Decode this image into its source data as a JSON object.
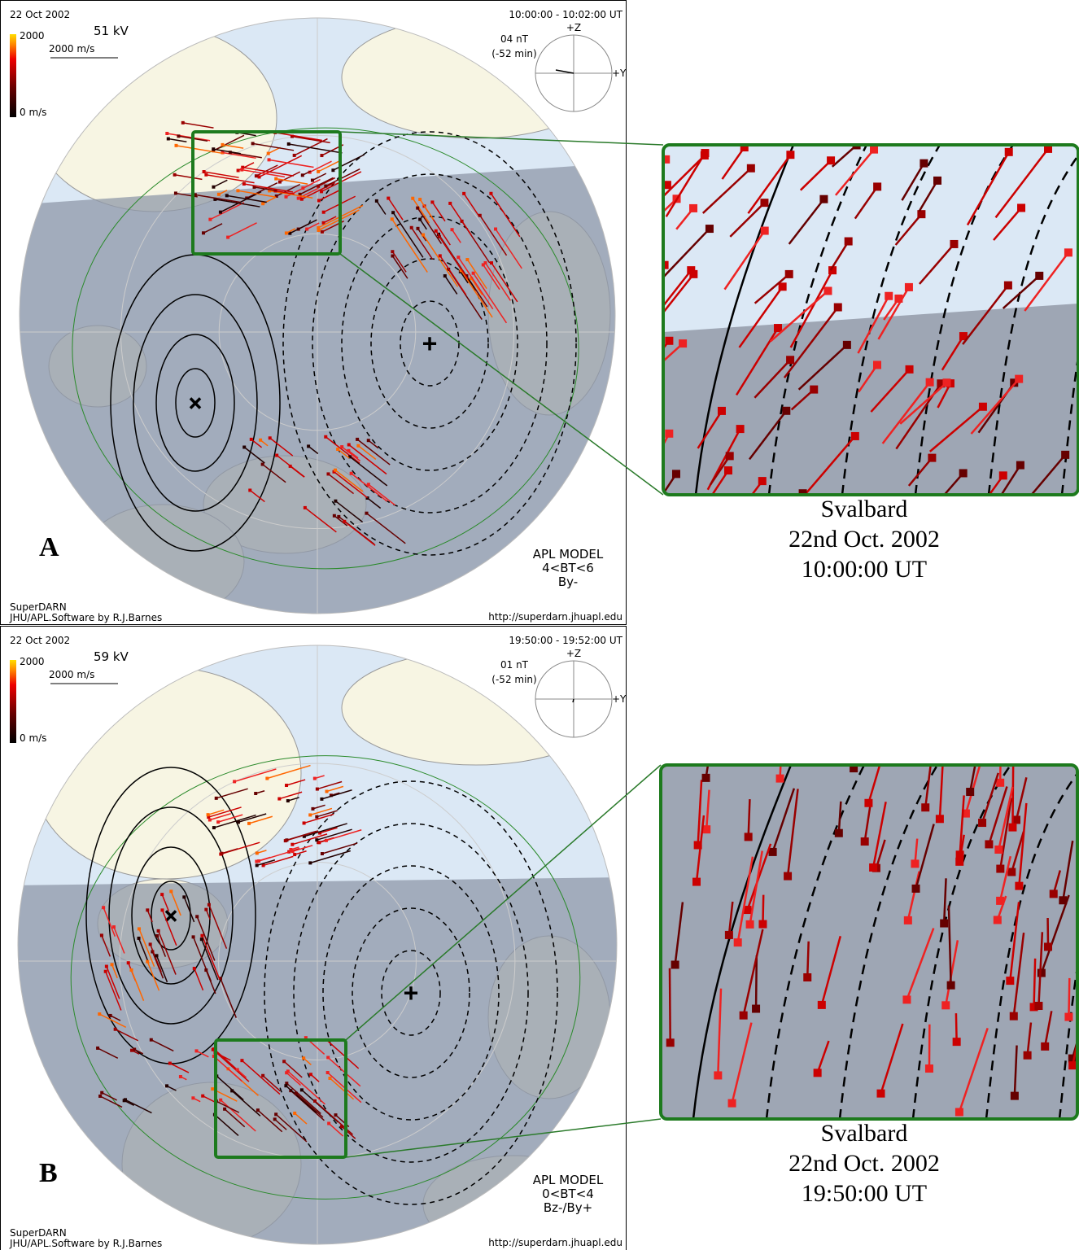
{
  "panels": [
    {
      "date": "22 Oct 2002",
      "potential": "51 kV",
      "scale_max": "2000",
      "scale_vector": "2000 m/s",
      "scale_min": "0 m/s",
      "time": "10:00:00 - 10:02:00 UT",
      "imf": "04 nT",
      "delay": "(-52 min)",
      "axis_z": "+Z",
      "axis_y": "+Y",
      "label": "A",
      "model": "APL MODEL",
      "model_bt": "4<BT<6",
      "model_b": "By-",
      "credit": "SuperDARN",
      "software": "JHU/APL.Software by R.J.Barnes",
      "url": "http://superdarn.jhuapl.edu",
      "zoom_caption": [
        "Svalbard",
        "22nd Oct. 2002",
        "10:00:00 UT"
      ]
    },
    {
      "date": "22 Oct 2002",
      "potential": "59 kV",
      "scale_max": "2000",
      "scale_vector": "2000 m/s",
      "scale_min": "0 m/s",
      "time": "19:50:00 - 19:52:00 UT",
      "imf": "01 nT",
      "delay": "(-52 min)",
      "axis_z": "+Z",
      "axis_y": "+Y",
      "label": "B",
      "model": "APL MODEL",
      "model_bt": "0<BT<4",
      "model_b": "Bz-/By+",
      "credit": "SuperDARN",
      "software": "JHU/APL.Software by R.J.Barnes",
      "url": "http://superdarn.jhuapl.edu",
      "zoom_caption": [
        "Svalbard",
        "22nd Oct. 2002",
        "19:50:00 UT"
      ]
    }
  ]
}
